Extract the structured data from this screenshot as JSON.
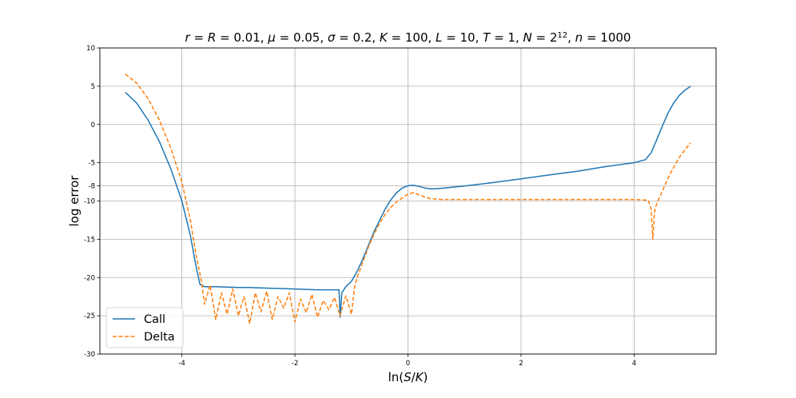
{
  "chart_data": {
    "type": "line",
    "title": "r = R = 0.01, μ = 0.05, σ = 0.2, K = 100, L = 10, T = 1, N = 2¹², n = 1000",
    "title_parts": [
      {
        "t": "r",
        "i": true
      },
      {
        "t": " = "
      },
      {
        "t": "R",
        "i": true
      },
      {
        "t": " = 0.01, "
      },
      {
        "t": "μ",
        "i": true
      },
      {
        "t": " = 0.05, "
      },
      {
        "t": "σ",
        "i": true
      },
      {
        "t": " = 0.2, "
      },
      {
        "t": "K",
        "i": true
      },
      {
        "t": " = 100, "
      },
      {
        "t": "L",
        "i": true
      },
      {
        "t": " = 10, "
      },
      {
        "t": "T",
        "i": true
      },
      {
        "t": " = 1, "
      },
      {
        "t": "N",
        "i": true
      },
      {
        "t": " = 2"
      },
      {
        "t": "12",
        "sup": true
      },
      {
        "t": ", "
      },
      {
        "t": "n",
        "i": true
      },
      {
        "t": " = 1000"
      }
    ],
    "xlabel": "ln(S/K)",
    "xlabel_parts": [
      {
        "t": "ln("
      },
      {
        "t": "S",
        "i": true
      },
      {
        "t": "/"
      },
      {
        "t": "K",
        "i": true
      },
      {
        "t": ")"
      }
    ],
    "ylabel": "log error",
    "xlim": [
      -5.45,
      5.45
    ],
    "ylim": [
      -30,
      10
    ],
    "x_ticks": [
      -4,
      -2,
      0,
      2,
      4
    ],
    "x_tick_labels": [
      "-4",
      "-2",
      "0",
      "2",
      "4"
    ],
    "y_ticks": [
      -30,
      -25,
      -20,
      -15,
      -10,
      -8,
      -5,
      0,
      5,
      10
    ],
    "y_tick_labels": [
      "-30",
      "-25",
      "-20",
      "-15",
      "-10",
      "-8",
      "-5",
      "0",
      "5",
      "10"
    ],
    "grid": true,
    "legend": {
      "position": "lower-left",
      "entries": [
        "Call",
        "Delta"
      ]
    },
    "series": [
      {
        "name": "Call",
        "color": "#1f77b4",
        "style": "solid",
        "points": [
          [
            -5.0,
            4.2
          ],
          [
            -4.8,
            2.8
          ],
          [
            -4.6,
            0.6
          ],
          [
            -4.4,
            -2.2
          ],
          [
            -4.2,
            -5.7
          ],
          [
            -4.0,
            -10.0
          ],
          [
            -3.85,
            -14.5
          ],
          [
            -3.75,
            -18.5
          ],
          [
            -3.68,
            -20.9
          ],
          [
            -3.6,
            -21.2
          ],
          [
            -3.4,
            -21.2
          ],
          [
            -3.2,
            -21.25
          ],
          [
            -3.0,
            -21.3
          ],
          [
            -2.8,
            -21.3
          ],
          [
            -2.6,
            -21.35
          ],
          [
            -2.4,
            -21.4
          ],
          [
            -2.2,
            -21.45
          ],
          [
            -2.0,
            -21.5
          ],
          [
            -1.8,
            -21.55
          ],
          [
            -1.6,
            -21.6
          ],
          [
            -1.4,
            -21.6
          ],
          [
            -1.22,
            -21.6
          ],
          [
            -1.2,
            -25.2
          ],
          [
            -1.17,
            -22.0
          ],
          [
            -1.1,
            -21.2
          ],
          [
            -1.0,
            -20.5
          ],
          [
            -0.9,
            -19.2
          ],
          [
            -0.8,
            -17.6
          ],
          [
            -0.7,
            -15.8
          ],
          [
            -0.6,
            -14.0
          ],
          [
            -0.5,
            -12.5
          ],
          [
            -0.4,
            -11.0
          ],
          [
            -0.3,
            -9.8
          ],
          [
            -0.2,
            -8.9
          ],
          [
            -0.1,
            -8.3
          ],
          [
            0.0,
            -8.0
          ],
          [
            0.1,
            -7.95
          ],
          [
            0.2,
            -8.1
          ],
          [
            0.3,
            -8.3
          ],
          [
            0.4,
            -8.4
          ],
          [
            0.5,
            -8.4
          ],
          [
            1.0,
            -8.05
          ],
          [
            1.5,
            -7.6
          ],
          [
            2.0,
            -7.1
          ],
          [
            2.5,
            -6.6
          ],
          [
            3.0,
            -6.1
          ],
          [
            3.5,
            -5.5
          ],
          [
            4.0,
            -5.0
          ],
          [
            4.2,
            -4.6
          ],
          [
            4.3,
            -3.7
          ],
          [
            4.4,
            -2.0
          ],
          [
            4.5,
            -0.2
          ],
          [
            4.6,
            1.5
          ],
          [
            4.7,
            2.8
          ],
          [
            4.8,
            3.8
          ],
          [
            4.9,
            4.5
          ],
          [
            5.0,
            5.0
          ]
        ]
      },
      {
        "name": "Delta",
        "color": "#ff7f0e",
        "style": "dashed",
        "points": [
          [
            -5.0,
            6.6
          ],
          [
            -4.8,
            5.4
          ],
          [
            -4.6,
            3.4
          ],
          [
            -4.4,
            0.6
          ],
          [
            -4.2,
            -3.0
          ],
          [
            -4.0,
            -7.5
          ],
          [
            -3.85,
            -12.5
          ],
          [
            -3.75,
            -17.0
          ],
          [
            -3.65,
            -20.6
          ],
          [
            -3.6,
            -23.5
          ],
          [
            -3.5,
            -21.0
          ],
          [
            -3.4,
            -25.5
          ],
          [
            -3.3,
            -22.0
          ],
          [
            -3.2,
            -24.8
          ],
          [
            -3.1,
            -21.5
          ],
          [
            -3.0,
            -25.0
          ],
          [
            -2.9,
            -22.5
          ],
          [
            -2.8,
            -26.0
          ],
          [
            -2.7,
            -22.0
          ],
          [
            -2.6,
            -24.5
          ],
          [
            -2.5,
            -21.8
          ],
          [
            -2.4,
            -25.5
          ],
          [
            -2.3,
            -22.5
          ],
          [
            -2.2,
            -24.0
          ],
          [
            -2.1,
            -22.0
          ],
          [
            -2.0,
            -25.8
          ],
          [
            -1.9,
            -22.8
          ],
          [
            -1.8,
            -24.6
          ],
          [
            -1.7,
            -22.2
          ],
          [
            -1.6,
            -25.2
          ],
          [
            -1.5,
            -23.0
          ],
          [
            -1.4,
            -24.2
          ],
          [
            -1.3,
            -22.6
          ],
          [
            -1.2,
            -25.0
          ],
          [
            -1.1,
            -22.4
          ],
          [
            -1.0,
            -24.8
          ],
          [
            -0.95,
            -21.5
          ],
          [
            -0.9,
            -20.0
          ],
          [
            -0.8,
            -18.0
          ],
          [
            -0.7,
            -16.0
          ],
          [
            -0.6,
            -14.3
          ],
          [
            -0.5,
            -12.9
          ],
          [
            -0.4,
            -11.7
          ],
          [
            -0.3,
            -10.8
          ],
          [
            -0.2,
            -10.1
          ],
          [
            -0.1,
            -9.6
          ],
          [
            0.0,
            -9.1
          ],
          [
            0.1,
            -8.9
          ],
          [
            0.2,
            -9.2
          ],
          [
            0.3,
            -9.5
          ],
          [
            0.4,
            -9.7
          ],
          [
            0.6,
            -9.8
          ],
          [
            1.0,
            -9.8
          ],
          [
            2.0,
            -9.8
          ],
          [
            3.0,
            -9.8
          ],
          [
            4.0,
            -9.8
          ],
          [
            4.25,
            -9.9
          ],
          [
            4.3,
            -11.0
          ],
          [
            4.33,
            -15.0
          ],
          [
            4.36,
            -11.5
          ],
          [
            4.4,
            -10.3
          ],
          [
            4.5,
            -8.7
          ],
          [
            4.6,
            -7.0
          ],
          [
            4.7,
            -5.6
          ],
          [
            4.8,
            -4.3
          ],
          [
            4.9,
            -3.3
          ],
          [
            5.0,
            -2.4
          ]
        ]
      }
    ]
  }
}
